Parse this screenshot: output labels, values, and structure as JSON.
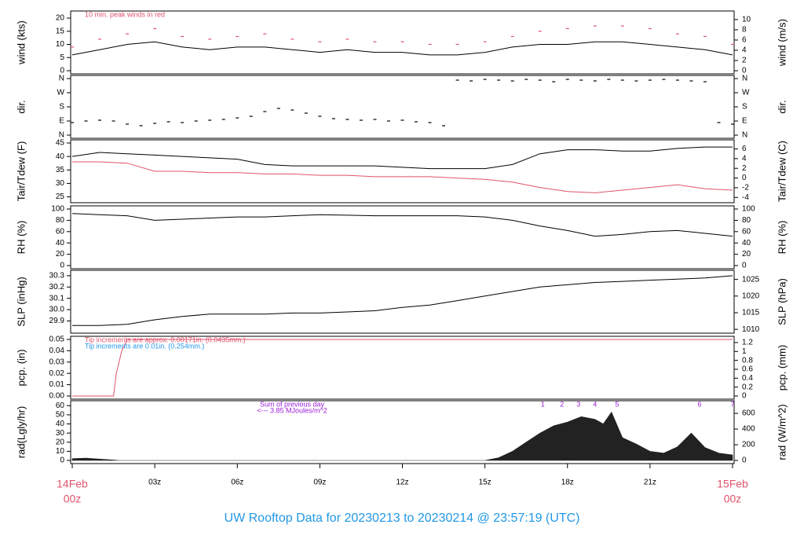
{
  "title": "UW Rooftop Data for 20230213  to  20230214 @ 23:57:19  (UTC)",
  "chart_data": [
    {
      "type": "line",
      "ylabel": "wind (kts)",
      "y2label": "wind (m/s)",
      "annotations": [
        {
          "text": "10 min. peak winds in red",
          "color": "#df536b"
        }
      ],
      "xlim": [
        0,
        24
      ],
      "ylim": [
        0,
        21.5
      ],
      "yticks": [
        0,
        5,
        10,
        15,
        20
      ],
      "y2lim": [
        0,
        11.06
      ],
      "y2ticks": [
        0,
        2,
        4,
        6,
        8,
        10
      ],
      "x": [
        0,
        1,
        2,
        3,
        4,
        5,
        6,
        7,
        8,
        9,
        10,
        11,
        12,
        13,
        14,
        15,
        16,
        17,
        18,
        19,
        20,
        21,
        22,
        23,
        24
      ],
      "series": [
        {
          "name": "wind",
          "color": "#000000",
          "mark": "line",
          "values": [
            6,
            8,
            10,
            11,
            9,
            8,
            9,
            9,
            8,
            7,
            8,
            7,
            7,
            6,
            6,
            7,
            9,
            10,
            10,
            11,
            11,
            10,
            9,
            8,
            6
          ]
        },
        {
          "name": "peak",
          "color": "#df536b",
          "mark": "dash",
          "values": [
            9,
            12,
            14,
            16,
            13,
            12,
            13,
            14,
            12,
            11,
            12,
            11,
            11,
            10,
            10,
            11,
            13,
            15,
            16,
            17,
            17,
            16,
            14,
            13,
            10
          ]
        }
      ]
    },
    {
      "type": "scatter",
      "ylabel": "dir.",
      "y2label": "dir.",
      "xlim": [
        0,
        24
      ],
      "ylim": [
        0,
        360
      ],
      "yticks": [
        {
          "value": 0,
          "label": "N"
        },
        {
          "value": 90,
          "label": "E"
        },
        {
          "value": 180,
          "label": "S"
        },
        {
          "value": 270,
          "label": "W"
        },
        {
          "value": 360,
          "label": "N"
        }
      ],
      "y2lim": [
        0,
        360
      ],
      "y2ticks": [
        {
          "value": 0,
          "label": "N"
        },
        {
          "value": 90,
          "label": "E"
        },
        {
          "value": 180,
          "label": "S"
        },
        {
          "value": 270,
          "label": "W"
        },
        {
          "value": 360,
          "label": "N"
        }
      ],
      "x": [
        0,
        0.5,
        1,
        1.5,
        2,
        2.5,
        3,
        3.5,
        4,
        4.5,
        5,
        5.5,
        6,
        6.5,
        7,
        7.5,
        8,
        8.5,
        9,
        9.5,
        10,
        10.5,
        11,
        11.5,
        12,
        12.5,
        13,
        13.5,
        14,
        14.5,
        15,
        15.5,
        16,
        16.5,
        17,
        17.5,
        18,
        18.5,
        19,
        19.5,
        20,
        20.5,
        21,
        21.5,
        22,
        22.5,
        23,
        23.5,
        24
      ],
      "series": [
        {
          "name": "dir",
          "color": "#000000",
          "values": [
            80,
            90,
            95,
            90,
            70,
            60,
            75,
            85,
            80,
            90,
            95,
            100,
            110,
            120,
            150,
            170,
            160,
            140,
            120,
            105,
            100,
            95,
            100,
            90,
            95,
            85,
            80,
            60,
            350,
            345,
            355,
            350,
            345,
            355,
            350,
            340,
            355,
            350,
            345,
            355,
            350,
            345,
            350,
            355,
            350,
            345,
            340,
            80,
            70
          ]
        }
      ]
    },
    {
      "type": "line",
      "ylabel": "Tair/Tdew (F)",
      "y2label": "Tair/Tdew (C)",
      "xlim": [
        0,
        24
      ],
      "ylim": [
        24,
        45
      ],
      "yticks": [
        25,
        30,
        35,
        40,
        45
      ],
      "y2lim": [
        -4.44,
        7.22
      ],
      "y2ticks": [
        -4,
        -2,
        0,
        2,
        4,
        6
      ],
      "x": [
        0,
        1,
        2,
        3,
        4,
        5,
        6,
        7,
        8,
        9,
        10,
        11,
        12,
        13,
        14,
        15,
        16,
        17,
        18,
        19,
        20,
        21,
        22,
        23,
        24
      ],
      "series": [
        {
          "name": "Tair",
          "color": "#000000",
          "mark": "line",
          "values": [
            40,
            41.5,
            41,
            40.5,
            40,
            39.5,
            39,
            37,
            36.5,
            36.5,
            36.5,
            36.5,
            36,
            35.5,
            35.5,
            35.5,
            37,
            41,
            42.5,
            42.5,
            42,
            42,
            43,
            43.5,
            43.5
          ]
        },
        {
          "name": "Tdew",
          "color": "#df536b",
          "mark": "line",
          "values": [
            38,
            38,
            37.5,
            34.5,
            34.5,
            34,
            34,
            33.5,
            33.5,
            33,
            33,
            32.5,
            32.5,
            32.5,
            32,
            31.5,
            30.5,
            28.5,
            27,
            26.5,
            27.5,
            28.5,
            29.5,
            28,
            27.5
          ]
        }
      ]
    },
    {
      "type": "line",
      "ylabel": "RH (%)",
      "y2label": "RH (%)",
      "xlim": [
        0,
        24
      ],
      "ylim": [
        0,
        100
      ],
      "yticks": [
        0,
        20,
        40,
        60,
        80,
        100
      ],
      "y2lim": [
        0,
        100
      ],
      "y2ticks": [
        0,
        20,
        40,
        60,
        80,
        100
      ],
      "x": [
        0,
        1,
        2,
        3,
        4,
        5,
        6,
        7,
        8,
        9,
        10,
        11,
        12,
        13,
        14,
        15,
        16,
        17,
        18,
        19,
        20,
        21,
        22,
        23,
        24
      ],
      "series": [
        {
          "name": "RH",
          "color": "#000000",
          "mark": "line",
          "values": [
            92,
            90,
            88,
            80,
            82,
            84,
            86,
            86,
            88,
            90,
            89,
            88,
            88,
            88,
            88,
            86,
            80,
            70,
            62,
            52,
            55,
            60,
            62,
            57,
            52
          ]
        }
      ]
    },
    {
      "type": "line",
      "ylabel": "SLP (inHg)",
      "y2label": "SLP (hPa)",
      "xlim": [
        0,
        24
      ],
      "ylim": [
        29.82,
        30.32
      ],
      "yticks": [
        29.9,
        {
          "value": 30,
          "label": "30.0"
        },
        30.1,
        30.2,
        30.3
      ],
      "y2lim": [
        1009.8,
        1026.8
      ],
      "y2ticks": [
        1010,
        1015,
        1020,
        1025
      ],
      "x": [
        0,
        1,
        2,
        3,
        4,
        5,
        6,
        7,
        8,
        9,
        10,
        11,
        12,
        13,
        14,
        15,
        16,
        17,
        18,
        19,
        20,
        21,
        22,
        23,
        24
      ],
      "series": [
        {
          "name": "SLP",
          "color": "#000000",
          "mark": "line",
          "values": [
            29.86,
            29.86,
            29.87,
            29.91,
            29.94,
            29.96,
            29.96,
            29.96,
            29.97,
            29.97,
            29.98,
            29.99,
            30.02,
            30.04,
            30.08,
            30.12,
            30.16,
            30.2,
            30.22,
            30.24,
            30.25,
            30.26,
            30.27,
            30.28,
            30.3
          ]
        }
      ]
    },
    {
      "type": "line",
      "ylabel": "pcp. (in)",
      "y2label": "pcp. (mm)",
      "annotations": [
        {
          "text": "Tip increments are approx. 0.00171in. (0.0435mm.)",
          "color": "#df536b"
        },
        {
          "text": "Tip increments are 0.01in. (0.254mm.)",
          "color": "#2297e6"
        }
      ],
      "xlim": [
        0,
        24
      ],
      "ylim": [
        0,
        0.05
      ],
      "yticks": [
        {
          "value": 0,
          "label": "0.00"
        },
        0.01,
        0.02,
        0.03,
        0.04,
        0.05
      ],
      "y2lim": [
        0,
        1.27
      ],
      "y2ticks": [
        0,
        0.2,
        0.4,
        0.6,
        0.8,
        1,
        1.2
      ],
      "x": [
        0,
        1,
        1.5,
        1.6,
        1.8,
        2,
        24
      ],
      "series": [
        {
          "name": "pcp",
          "color": "#df536b",
          "mark": "line",
          "values": [
            0,
            0,
            0,
            0.02,
            0.04,
            0.05,
            0.05
          ]
        }
      ]
    },
    {
      "type": "area",
      "ylabel": "rad(Lgly/hr)",
      "y2label": "rad (W/m^2)",
      "annotations": [
        {
          "text": "Sum of previous day",
          "color": "#9a1fd8"
        },
        {
          "text": "<--- 3.85 MJoules/m^2",
          "color": "#9a1fd8"
        }
      ],
      "sun_marks": {
        "x": [
          17.1,
          17.8,
          18.4,
          19.0,
          19.8,
          22.8,
          24
        ],
        "labels": [
          1,
          2,
          3,
          4,
          5,
          6,
          7
        ]
      },
      "xlim": [
        0,
        24
      ],
      "ylim": [
        0,
        62
      ],
      "yticks": [
        0,
        10,
        20,
        30,
        40,
        50,
        60
      ],
      "y2lim": [
        0,
        721
      ],
      "y2ticks": [
        0,
        200,
        400,
        600
      ],
      "xticks": [
        {
          "value": 0,
          "label": "00z"
        },
        {
          "value": 3,
          "label": "03z"
        },
        {
          "value": 6,
          "label": "06z"
        },
        {
          "value": 9,
          "label": "09z"
        },
        {
          "value": 12,
          "label": "12z"
        },
        {
          "value": 15,
          "label": "15z"
        },
        {
          "value": 18,
          "label": "18z"
        },
        {
          "value": 21,
          "label": "21z"
        },
        {
          "value": 24,
          "label": "00z"
        }
      ],
      "date_labels": [
        "14Feb",
        "15Feb"
      ],
      "x": [
        0,
        0.5,
        1,
        1.5,
        1.7,
        15,
        15.5,
        16,
        16.5,
        17,
        17.5,
        18,
        18.5,
        19,
        19.3,
        19.6,
        20,
        20.5,
        21,
        21.5,
        22,
        22.5,
        23,
        23.5,
        24
      ],
      "series": [
        {
          "name": "rad",
          "color": "#222222",
          "values": [
            2,
            2.5,
            1.5,
            0.5,
            0,
            0,
            3,
            10,
            20,
            30,
            38,
            42,
            48,
            45,
            40,
            53,
            25,
            18,
            10,
            8,
            15,
            30,
            14,
            8,
            6
          ]
        }
      ]
    }
  ]
}
